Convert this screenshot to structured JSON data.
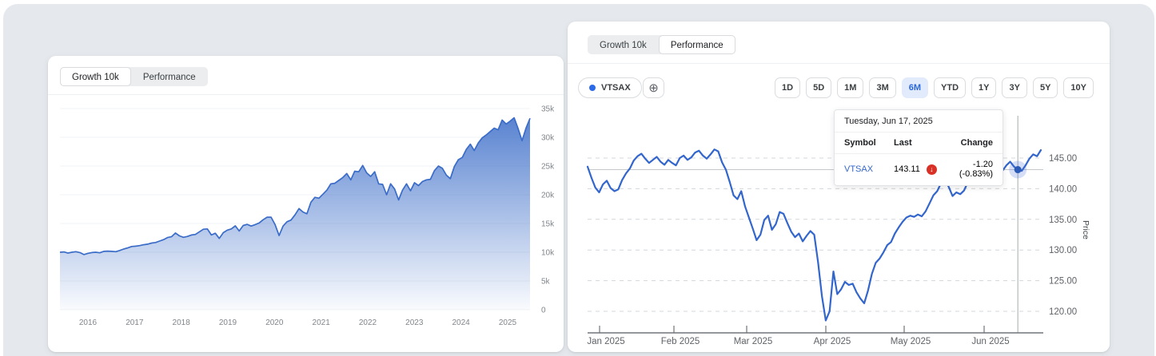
{
  "background_color": "#e5e9ed",
  "accent_blue": "#3366cc",
  "left_panel": {
    "tabs": [
      {
        "label": "Growth 10k",
        "active": true
      },
      {
        "label": "Performance",
        "active": false
      }
    ]
  },
  "right_panel": {
    "tabs": [
      {
        "label": "Growth 10k",
        "active": false
      },
      {
        "label": "Performance",
        "active": true
      }
    ],
    "series_chip": {
      "label": "VTSAX",
      "dot_color": "#2a6ae8"
    },
    "add_button_glyph": "⊕",
    "ranges": [
      {
        "label": "1D",
        "active": false
      },
      {
        "label": "5D",
        "active": false
      },
      {
        "label": "1M",
        "active": false
      },
      {
        "label": "3M",
        "active": false
      },
      {
        "label": "6M",
        "active": true
      },
      {
        "label": "YTD",
        "active": false
      },
      {
        "label": "1Y",
        "active": false
      },
      {
        "label": "3Y",
        "active": false
      },
      {
        "label": "5Y",
        "active": false
      },
      {
        "label": "10Y",
        "active": false
      }
    ],
    "tooltip": {
      "date": "Tuesday, Jun 17, 2025",
      "columns": [
        "Symbol",
        "Last",
        "Change"
      ],
      "rows": [
        {
          "symbol": "VTSAX",
          "last": "143.11",
          "direction": "down",
          "direction_glyph": "↓",
          "change": "-1.20 (-0.83%)"
        }
      ]
    },
    "ylabel": "Price"
  },
  "chart_data": [
    {
      "type": "area",
      "title": "Growth 10k",
      "xlabel": "",
      "ylabel": "",
      "x_ticks": [
        "2016",
        "2017",
        "2018",
        "2019",
        "2020",
        "2021",
        "2022",
        "2023",
        "2024",
        "2025"
      ],
      "y_ticks": [
        "35k",
        "30k",
        "25k",
        "20k",
        "15k",
        "10k",
        "5k",
        "0"
      ],
      "y_grid_values": [
        35,
        30,
        25,
        20,
        15,
        10,
        5,
        0
      ],
      "ylim": [
        0,
        35000
      ],
      "grid": true,
      "line_color": "#3a6cc8",
      "series": [
        {
          "name": "Growth of 10k",
          "values": [
            10,
            10.05,
            9.85,
            10,
            10.1,
            9.95,
            9.6,
            9.8,
            9.95,
            10,
            9.9,
            10.15,
            10.2,
            10.15,
            10.1,
            10.3,
            10.55,
            10.75,
            11,
            11.05,
            11.15,
            11.3,
            11.4,
            11.6,
            11.7,
            11.95,
            12.2,
            12.55,
            12.7,
            13.35,
            12.85,
            12.6,
            12.75,
            13,
            13.1,
            13.55,
            14,
            14.05,
            13,
            13.3,
            12.4,
            13.4,
            13.85,
            14.05,
            14.6,
            13.7,
            14.65,
            14.85,
            14.55,
            14.8,
            15.1,
            15.65,
            16.1,
            16.1,
            14.8,
            12.9,
            14.55,
            15.3,
            15.6,
            16.5,
            17.6,
            17,
            16.7,
            18.7,
            19.55,
            19.4,
            20.1,
            20.8,
            21.9,
            22,
            22.5,
            23,
            23.7,
            22.6,
            24.1,
            24,
            25.1,
            23.8,
            23.2,
            24,
            21.9,
            21.8,
            20,
            21.9,
            21,
            19.1,
            20.8,
            21.9,
            20.7,
            22.1,
            21.6,
            22.3,
            22.6,
            22.7,
            24.2,
            25,
            24.6,
            23.4,
            22.8,
            24.9,
            26.1,
            26.5,
            27.9,
            28.8,
            27.7,
            29,
            29.9,
            30.4,
            31,
            31.6,
            31.3,
            33,
            32.3,
            32.8,
            33.4,
            31.5,
            29.4,
            31.6,
            33.3
          ]
        }
      ]
    },
    {
      "type": "line",
      "title": "VTSAX 6M price",
      "xlabel": "",
      "ylabel": "Price",
      "x_ticks": [
        "Jan 2025",
        "Feb 2025",
        "Mar 2025",
        "Apr 2025",
        "May 2025",
        "Jun 2025"
      ],
      "y_ticks": [
        "145.00",
        "140.00",
        "135.00",
        "130.00",
        "125.00",
        "120.00"
      ],
      "y_grid_values": [
        145,
        140,
        135,
        130,
        125,
        120
      ],
      "ylim": [
        117,
        148
      ],
      "grid": true,
      "line_color": "#3366cc",
      "series": [
        {
          "name": "VTSAX",
          "values": [
            143.6,
            141.8,
            140.2,
            139.4,
            140.7,
            141.3,
            140.1,
            139.6,
            139.9,
            141.4,
            142.5,
            143.3,
            144.6,
            145.3,
            145.7,
            144.9,
            144.2,
            144.7,
            145.2,
            144.4,
            143.9,
            144.7,
            144.2,
            143.8,
            145,
            145.4,
            144.7,
            145.1,
            145.9,
            146.2,
            145.4,
            144.9,
            145.6,
            146.4,
            146.1,
            144.3,
            143.1,
            141.1,
            138.9,
            138.3,
            139.6,
            137.1,
            135.3,
            133.5,
            131.6,
            132.5,
            134.9,
            135.6,
            133.3,
            134.2,
            136.2,
            135.9,
            134.4,
            133,
            132.1,
            132.7,
            131.4,
            132.3,
            133.1,
            132.5,
            128,
            122.5,
            118.5,
            120,
            126.5,
            122.8,
            123.6,
            124.8,
            124.3,
            124.5,
            123.1,
            122.1,
            121.3,
            123.4,
            126.1,
            127.9,
            128.6,
            129.6,
            130.8,
            131.3,
            132.7,
            133.7,
            134.6,
            135.3,
            135.6,
            135.4,
            135.8,
            135.5,
            136.3,
            137.6,
            138.9,
            139.6,
            140.9,
            141.6,
            140.3,
            138.8,
            139.4,
            139.1,
            139.7,
            141.1,
            142.5,
            143.5,
            144,
            143.5,
            142.7,
            143.4,
            144.3,
            143.7,
            142.9,
            143.8,
            144.4,
            143.6,
            143.11,
            142.9,
            143.8,
            144.9,
            145.6,
            145.3,
            146.3
          ]
        }
      ],
      "hover": {
        "index": 112,
        "value": 143.11,
        "date": "Tuesday, Jun 17, 2025"
      }
    }
  ]
}
